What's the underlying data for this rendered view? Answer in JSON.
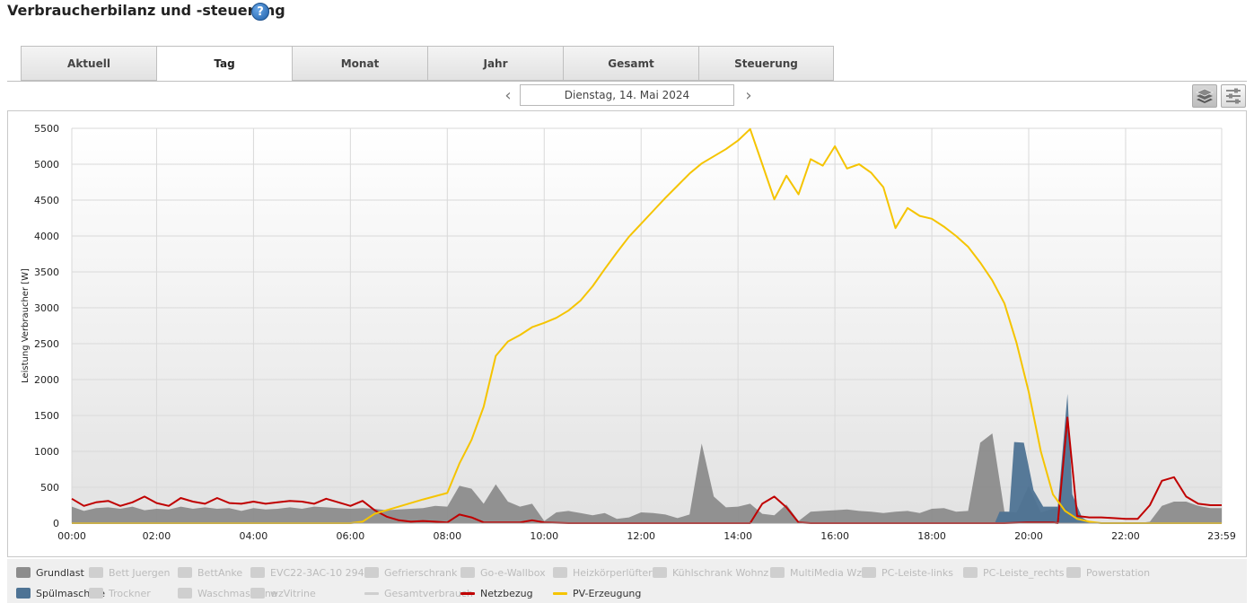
{
  "page": {
    "title": "Verbraucherbilanz und -steuerung",
    "help_icon": "?"
  },
  "tabs": [
    "Aktuell",
    "Tag",
    "Monat",
    "Jahr",
    "Gesamt",
    "Steuerung"
  ],
  "active_tab": "Tag",
  "date_nav": {
    "prev": "‹",
    "next": "›",
    "date": "Dienstag, 14. Mai 2024"
  },
  "toolbar": {
    "stack_icon": "layers-icon",
    "config_icon": "sliders-icon"
  },
  "chart_data": {
    "type": "area",
    "ylabel": "Leistung Verbraucher [W]",
    "ylim": [
      0,
      5500
    ],
    "yticks": [
      0,
      500,
      1000,
      1500,
      2000,
      2500,
      3000,
      3500,
      4000,
      4500,
      5000,
      5500
    ],
    "xlim_hours": [
      0.25,
      23.983
    ],
    "xticks": [
      "00:00",
      "02:00",
      "04:00",
      "06:00",
      "08:00",
      "10:00",
      "12:00",
      "14:00",
      "16:00",
      "18:00",
      "20:00",
      "22:00",
      "23:59"
    ],
    "grid": true,
    "legend_position": "bottom",
    "series": [
      {
        "name": "Grundlast",
        "kind": "area",
        "color": "#8c8c8c",
        "points": [
          [
            0.25,
            230
          ],
          [
            0.5,
            170
          ],
          [
            0.75,
            210
          ],
          [
            1,
            220
          ],
          [
            1.25,
            200
          ],
          [
            1.5,
            230
          ],
          [
            1.75,
            180
          ],
          [
            2,
            200
          ],
          [
            2.25,
            190
          ],
          [
            2.5,
            230
          ],
          [
            2.75,
            200
          ],
          [
            3,
            220
          ],
          [
            3.25,
            200
          ],
          [
            3.5,
            210
          ],
          [
            3.75,
            170
          ],
          [
            4,
            210
          ],
          [
            4.25,
            190
          ],
          [
            4.5,
            200
          ],
          [
            4.75,
            220
          ],
          [
            5,
            200
          ],
          [
            5.25,
            230
          ],
          [
            5.5,
            220
          ],
          [
            5.75,
            210
          ],
          [
            6,
            200
          ],
          [
            6.25,
            210
          ],
          [
            6.5,
            200
          ],
          [
            6.75,
            180
          ],
          [
            7,
            190
          ],
          [
            7.25,
            200
          ],
          [
            7.5,
            210
          ],
          [
            7.75,
            240
          ],
          [
            8,
            230
          ],
          [
            8.25,
            520
          ],
          [
            8.5,
            480
          ],
          [
            8.75,
            270
          ],
          [
            9,
            540
          ],
          [
            9.25,
            300
          ],
          [
            9.5,
            230
          ],
          [
            9.75,
            270
          ],
          [
            10,
            30
          ],
          [
            10.25,
            150
          ],
          [
            10.5,
            170
          ],
          [
            10.75,
            140
          ],
          [
            11,
            110
          ],
          [
            11.25,
            140
          ],
          [
            11.5,
            60
          ],
          [
            11.75,
            80
          ],
          [
            12,
            150
          ],
          [
            12.25,
            140
          ],
          [
            12.5,
            120
          ],
          [
            12.75,
            70
          ],
          [
            13,
            120
          ],
          [
            13.25,
            1110
          ],
          [
            13.5,
            370
          ],
          [
            13.75,
            220
          ],
          [
            14,
            230
          ],
          [
            14.25,
            270
          ],
          [
            14.5,
            130
          ],
          [
            14.75,
            110
          ],
          [
            15,
            260
          ],
          [
            15.25,
            30
          ],
          [
            15.5,
            160
          ],
          [
            15.75,
            170
          ],
          [
            16,
            180
          ],
          [
            16.25,
            190
          ],
          [
            16.5,
            170
          ],
          [
            16.75,
            160
          ],
          [
            17,
            140
          ],
          [
            17.25,
            160
          ],
          [
            17.5,
            170
          ],
          [
            17.75,
            140
          ],
          [
            18,
            200
          ],
          [
            18.25,
            210
          ],
          [
            18.5,
            160
          ],
          [
            18.75,
            170
          ],
          [
            19,
            1120
          ],
          [
            19.25,
            1250
          ],
          [
            19.5,
            160
          ],
          [
            19.75,
            150
          ],
          [
            20,
            520
          ],
          [
            20.25,
            150
          ],
          [
            20.5,
            200
          ],
          [
            20.75,
            220
          ],
          [
            21,
            30
          ],
          [
            21.25,
            0
          ],
          [
            21.5,
            0
          ],
          [
            21.75,
            0
          ],
          [
            22,
            0
          ],
          [
            22.25,
            0
          ],
          [
            22.5,
            20
          ],
          [
            22.75,
            240
          ],
          [
            23,
            300
          ],
          [
            23.25,
            300
          ],
          [
            23.5,
            240
          ],
          [
            23.75,
            210
          ],
          [
            23.983,
            210
          ]
        ]
      },
      {
        "name": "Spülmaschine",
        "kind": "area",
        "color": "#4e7394",
        "points": [
          [
            19.3,
            0
          ],
          [
            19.4,
            160
          ],
          [
            19.6,
            160
          ],
          [
            19.7,
            1130
          ],
          [
            19.9,
            1120
          ],
          [
            20.1,
            460
          ],
          [
            20.3,
            230
          ],
          [
            20.45,
            230
          ],
          [
            20.5,
            230
          ],
          [
            20.6,
            230
          ],
          [
            20.8,
            1800
          ],
          [
            20.9,
            400
          ],
          [
            21.1,
            80
          ],
          [
            21.3,
            0
          ]
        ]
      },
      {
        "name": "Netzbezug",
        "kind": "line",
        "color": "#c00000",
        "points": [
          [
            0.25,
            340
          ],
          [
            0.5,
            240
          ],
          [
            0.75,
            290
          ],
          [
            1,
            310
          ],
          [
            1.25,
            240
          ],
          [
            1.5,
            290
          ],
          [
            1.75,
            370
          ],
          [
            2,
            280
          ],
          [
            2.25,
            240
          ],
          [
            2.5,
            350
          ],
          [
            2.75,
            300
          ],
          [
            3,
            270
          ],
          [
            3.25,
            350
          ],
          [
            3.5,
            280
          ],
          [
            3.75,
            270
          ],
          [
            4,
            300
          ],
          [
            4.25,
            270
          ],
          [
            4.5,
            290
          ],
          [
            4.75,
            310
          ],
          [
            5,
            300
          ],
          [
            5.25,
            270
          ],
          [
            5.5,
            340
          ],
          [
            5.75,
            290
          ],
          [
            6,
            240
          ],
          [
            6.25,
            310
          ],
          [
            6.5,
            180
          ],
          [
            6.75,
            90
          ],
          [
            7,
            40
          ],
          [
            7.25,
            20
          ],
          [
            7.5,
            30
          ],
          [
            7.75,
            20
          ],
          [
            8,
            10
          ],
          [
            8.25,
            120
          ],
          [
            8.5,
            80
          ],
          [
            8.75,
            10
          ],
          [
            9,
            10
          ],
          [
            9.5,
            10
          ],
          [
            9.75,
            40
          ],
          [
            10,
            10
          ],
          [
            10.5,
            0
          ],
          [
            11,
            0
          ],
          [
            12,
            0
          ],
          [
            13,
            0
          ],
          [
            14,
            0
          ],
          [
            14.25,
            0
          ],
          [
            14.5,
            270
          ],
          [
            14.75,
            370
          ],
          [
            15,
            220
          ],
          [
            15.25,
            10
          ],
          [
            15.5,
            0
          ],
          [
            16,
            0
          ],
          [
            17,
            0
          ],
          [
            18,
            0
          ],
          [
            19,
            0
          ],
          [
            19.5,
            0
          ],
          [
            20,
            10
          ],
          [
            20.5,
            10
          ],
          [
            20.6,
            0
          ],
          [
            20.8,
            1470
          ],
          [
            21,
            100
          ],
          [
            21.25,
            80
          ],
          [
            21.5,
            80
          ],
          [
            21.75,
            70
          ],
          [
            22,
            60
          ],
          [
            22.25,
            60
          ],
          [
            22.5,
            250
          ],
          [
            22.75,
            590
          ],
          [
            23,
            640
          ],
          [
            23.25,
            370
          ],
          [
            23.5,
            270
          ],
          [
            23.75,
            250
          ],
          [
            23.983,
            250
          ]
        ]
      },
      {
        "name": "PV-Erzeugung",
        "kind": "line",
        "color": "#f5c400",
        "points": [
          [
            0.25,
            0
          ],
          [
            1,
            0
          ],
          [
            2,
            0
          ],
          [
            3,
            0
          ],
          [
            4,
            0
          ],
          [
            5,
            0
          ],
          [
            6,
            0
          ],
          [
            6.25,
            20
          ],
          [
            6.5,
            130
          ],
          [
            7,
            230
          ],
          [
            7.5,
            330
          ],
          [
            8,
            420
          ],
          [
            8.25,
            830
          ],
          [
            8.5,
            1160
          ],
          [
            8.75,
            1620
          ],
          [
            9,
            2330
          ],
          [
            9.25,
            2530
          ],
          [
            9.5,
            2620
          ],
          [
            9.75,
            2730
          ],
          [
            10,
            2790
          ],
          [
            10.25,
            2860
          ],
          [
            10.5,
            2960
          ],
          [
            10.75,
            3100
          ],
          [
            11,
            3300
          ],
          [
            11.25,
            3540
          ],
          [
            11.5,
            3770
          ],
          [
            11.75,
            3990
          ],
          [
            12,
            4170
          ],
          [
            12.25,
            4350
          ],
          [
            12.5,
            4530
          ],
          [
            12.75,
            4700
          ],
          [
            13,
            4870
          ],
          [
            13.25,
            5010
          ],
          [
            13.5,
            5110
          ],
          [
            13.75,
            5210
          ],
          [
            14,
            5330
          ],
          [
            14.25,
            5490
          ],
          [
            14.5,
            5000
          ],
          [
            14.75,
            4510
          ],
          [
            15,
            4840
          ],
          [
            15.25,
            4580
          ],
          [
            15.5,
            5070
          ],
          [
            15.75,
            4980
          ],
          [
            16,
            5250
          ],
          [
            16.25,
            4940
          ],
          [
            16.5,
            5000
          ],
          [
            16.75,
            4880
          ],
          [
            17,
            4680
          ],
          [
            17.25,
            4110
          ],
          [
            17.5,
            4390
          ],
          [
            17.75,
            4280
          ],
          [
            18,
            4240
          ],
          [
            18.25,
            4130
          ],
          [
            18.5,
            4000
          ],
          [
            18.75,
            3850
          ],
          [
            19,
            3630
          ],
          [
            19.25,
            3380
          ],
          [
            19.5,
            3060
          ],
          [
            19.75,
            2510
          ],
          [
            20,
            1830
          ],
          [
            20.25,
            1000
          ],
          [
            20.5,
            400
          ],
          [
            20.75,
            170
          ],
          [
            21,
            60
          ],
          [
            21.25,
            20
          ],
          [
            21.5,
            0
          ],
          [
            22,
            0
          ],
          [
            22.5,
            0
          ],
          [
            23,
            0
          ],
          [
            23.5,
            0
          ],
          [
            23.983,
            0
          ]
        ]
      }
    ]
  },
  "legend": [
    {
      "label": "Grundlast",
      "color": "#8c8c8c",
      "type": "area",
      "active": true
    },
    {
      "label": "Bett Juergen",
      "color": "#cfcfcf",
      "type": "area",
      "active": false
    },
    {
      "label": "BettAnke",
      "color": "#cfcfcf",
      "type": "area",
      "active": false
    },
    {
      "label": "EVC22-3AC-10 294",
      "color": "#cfcfcf",
      "type": "area",
      "active": false
    },
    {
      "label": "Gefrierschrank",
      "color": "#cfcfcf",
      "type": "area",
      "active": false
    },
    {
      "label": "Go-e-Wallbox",
      "color": "#cfcfcf",
      "type": "area",
      "active": false
    },
    {
      "label": "Heizkörperlüfter",
      "color": "#cfcfcf",
      "type": "area",
      "active": false
    },
    {
      "label": "Kühlschrank Wohnz",
      "color": "#cfcfcf",
      "type": "area",
      "active": false
    },
    {
      "label": "MultiMedia Wz",
      "color": "#cfcfcf",
      "type": "area",
      "active": false
    },
    {
      "label": "PC-Leiste-links",
      "color": "#cfcfcf",
      "type": "area",
      "active": false
    },
    {
      "label": "PC-Leiste_rechts",
      "color": "#cfcfcf",
      "type": "area",
      "active": false
    },
    {
      "label": "Powerstation",
      "color": "#cfcfcf",
      "type": "area",
      "active": false
    },
    {
      "label": "Spülmaschine",
      "color": "#4e7394",
      "type": "area",
      "active": true
    },
    {
      "label": "Trockner",
      "color": "#cfcfcf",
      "type": "area",
      "active": false
    },
    {
      "label": "Waschmaschine",
      "color": "#cfcfcf",
      "type": "area",
      "active": false
    },
    {
      "label": "wzVitrine",
      "color": "#cfcfcf",
      "type": "area",
      "active": false
    },
    {
      "label": "Gesamtverbrauch",
      "color": "#cfcfcf",
      "type": "line",
      "active": false
    },
    {
      "label": "Netzbezug",
      "color": "#c00000",
      "type": "line",
      "active": true
    },
    {
      "label": "PV-Erzeugung",
      "color": "#f5c400",
      "type": "line",
      "active": true
    }
  ]
}
